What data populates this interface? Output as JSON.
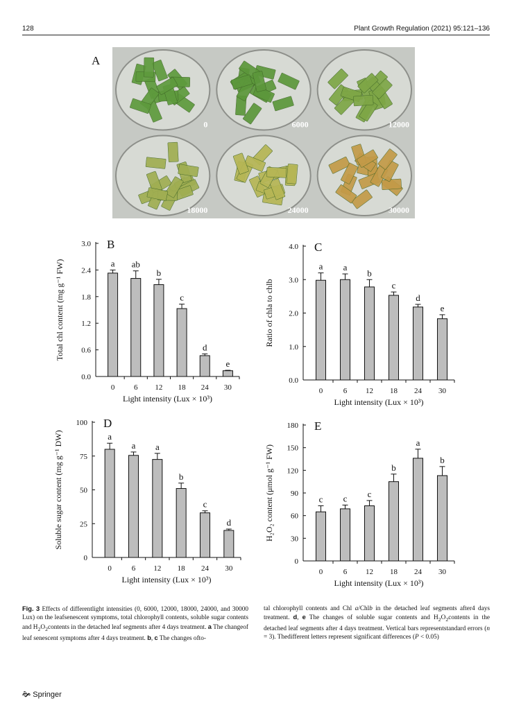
{
  "header": {
    "page_number": "128",
    "journal": "Plant Growth Regulation (2021) 95:121–136"
  },
  "figure_a": {
    "panel_label": "A",
    "dishes": [
      {
        "label": "0",
        "tint": "#5e9a3d"
      },
      {
        "label": "6000",
        "tint": "#5c973b"
      },
      {
        "label": "12000",
        "tint": "#7ea646"
      },
      {
        "label": "18000",
        "tint": "#a0ae52"
      },
      {
        "label": "24000",
        "tint": "#b6b655"
      },
      {
        "label": "30000",
        "tint": "#c39a48"
      }
    ]
  },
  "chart_data": [
    {
      "panel": "B",
      "type": "bar",
      "categories": [
        "0",
        "6",
        "12",
        "18",
        "24",
        "30"
      ],
      "values": [
        2.33,
        2.21,
        2.07,
        1.53,
        0.47,
        0.13
      ],
      "errors": [
        0.07,
        0.17,
        0.12,
        0.1,
        0.04,
        0.01
      ],
      "letters": [
        "a",
        "ab",
        "b",
        "c",
        "d",
        "e"
      ],
      "ylim": [
        0,
        3.0
      ],
      "yticks": [
        "0.0",
        "0.6",
        "1.2",
        "1.8",
        "2.4",
        "3.0"
      ],
      "ylabel": "Total chl content (mg g⁻¹ FW)",
      "xlabel": "Light intensity (Lux × 10³)"
    },
    {
      "panel": "C",
      "type": "bar",
      "categories": [
        "0",
        "6",
        "12",
        "18",
        "24",
        "30"
      ],
      "values": [
        2.98,
        3.0,
        2.78,
        2.53,
        2.18,
        1.83
      ],
      "errors": [
        0.22,
        0.17,
        0.22,
        0.1,
        0.08,
        0.12
      ],
      "letters": [
        "a",
        "a",
        "b",
        "c",
        "d",
        "e"
      ],
      "ylim": [
        0,
        4.0
      ],
      "yticks": [
        "0.0",
        "1.0",
        "2.0",
        "3.0",
        "4.0"
      ],
      "ylabel": "Ratio of chla to chlb",
      "xlabel": "Light intensity (Lux × 10³)"
    },
    {
      "panel": "D",
      "type": "bar",
      "categories": [
        "0",
        "6",
        "12",
        "18",
        "24",
        "30"
      ],
      "values": [
        80,
        75.5,
        72.5,
        51,
        33,
        20
      ],
      "errors": [
        4.5,
        2.5,
        4.5,
        4,
        1.5,
        1
      ],
      "letters": [
        "a",
        "a",
        "a",
        "b",
        "c",
        "d"
      ],
      "ylim": [
        0,
        100
      ],
      "yticks": [
        "0",
        "25",
        "50",
        "75",
        "100"
      ],
      "ylabel": "Soluble sugar content (mg g⁻¹ DW)",
      "xlabel": "Light intensity (Lux × 10³)"
    },
    {
      "panel": "E",
      "type": "bar",
      "categories": [
        "0",
        "6",
        "12",
        "18",
        "24",
        "30"
      ],
      "values": [
        65,
        69,
        73,
        105,
        136,
        113
      ],
      "errors": [
        8,
        5,
        7,
        10,
        12,
        12
      ],
      "letters": [
        "c",
        "c",
        "c",
        "b",
        "a",
        "b"
      ],
      "ylim": [
        0,
        180
      ],
      "yticks": [
        "0",
        "30",
        "60",
        "90",
        "120",
        "150",
        "180"
      ],
      "ylabel": "H₂O₂ content (μmol g⁻¹ FW)",
      "xlabel": "Light intensity (Lux × 10³)"
    }
  ],
  "caption": {
    "left": "Fig. 3 Effects of differentlight intensities (0, 6000, 12000, 18000, 24000, and 30000 Lux) on the leafsenescent symptoms, total chlorophyll contents, soluble sugar contents and H₂O₂contents in the detached leaf segments after 4 days treatment. a The changeof leaf senescent symptoms after 4 days treatment. b, c The changes ofto-",
    "right": "tal chlorophyll contents and Chl a/Chlb in the detached leaf segments after4 days treatment. d, e The changes of soluble sugar contents and H₂O₂contents in the detached leaf segments after 4 days treatment. Vertical bars representstandard errors (n = 3). Thedifferent letters represent significant differences (P < 0.05)"
  },
  "footer": {
    "publisher": "Springer"
  }
}
